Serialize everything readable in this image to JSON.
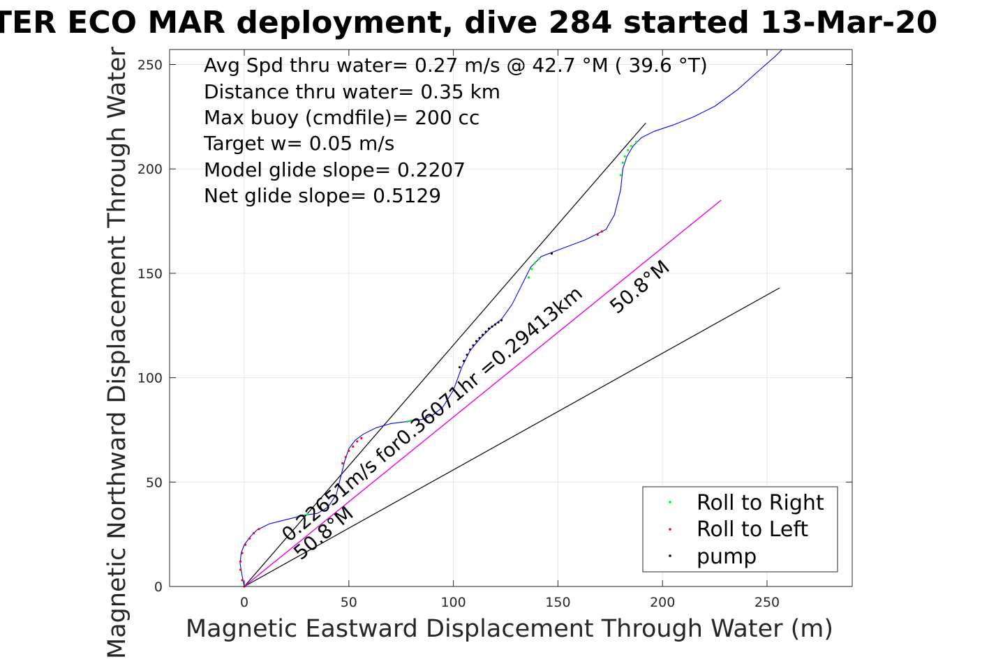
{
  "chart_data": {
    "type": "scatter",
    "title": "TER ECO MAR deployment, dive 284 started 13-Mar-20",
    "xlabel": "Magnetic Eastward Displacement Through Water (m)",
    "ylabel": "Magnetic Northward Displacement Through Water",
    "xlim": [
      -36,
      290
    ],
    "ylim": [
      0,
      258
    ],
    "xticks": [
      0,
      50,
      100,
      150,
      200,
      250
    ],
    "yticks": [
      0,
      50,
      100,
      150,
      200,
      250
    ],
    "grid": true,
    "legend_position": "bottom-right",
    "annotations": [
      "Avg Spd thru water=  0.27 m/s @  42.7 °M ( 39.6 °T)",
      "Distance thru water=  0.35 km",
      "Max buoy (cmdfile)= 200 cc",
      "Target w= 0.05 m/s",
      "Model glide slope= 0.2207",
      "Net glide slope= 0.5129"
    ],
    "rotated_labels": {
      "current": "0.22651m/s for0.36071hr =0.29413km",
      "heading_low": "50.8°M",
      "heading_high": "50.8°M"
    },
    "track": {
      "name": "track",
      "color": "#0000ff",
      "x": [
        0,
        -1,
        -2,
        -1.5,
        0,
        3,
        6,
        12,
        20,
        28,
        35,
        40,
        44,
        46,
        48,
        50,
        53,
        57,
        63,
        70,
        78,
        85,
        90,
        95,
        100,
        104,
        108,
        113,
        118,
        123,
        128,
        133,
        137,
        142,
        147,
        155,
        163,
        169,
        173,
        177,
        180,
        181,
        183,
        186,
        190,
        196,
        205,
        215,
        225,
        236,
        246,
        254,
        258
      ],
      "y": [
        0,
        5,
        11,
        16,
        20,
        24,
        27,
        30,
        32,
        34,
        35,
        38,
        44,
        52,
        60,
        66,
        70,
        73,
        76,
        78,
        79,
        80,
        82,
        86,
        94,
        105,
        113,
        119,
        124,
        128,
        135,
        145,
        153,
        158,
        160,
        163,
        166,
        169,
        171,
        178,
        190,
        200,
        206,
        211,
        215,
        218,
        221,
        225,
        230,
        238,
        247,
        254,
        258
      ]
    },
    "markers": [
      {
        "x": 0,
        "y": 0,
        "color": "#ff0000"
      },
      {
        "x": -1,
        "y": 3,
        "color": "#ff0000"
      },
      {
        "x": -1.8,
        "y": 8,
        "color": "#ff0000"
      },
      {
        "x": -1.8,
        "y": 12,
        "color": "#ff0000"
      },
      {
        "x": -1,
        "y": 16,
        "color": "#ff0000"
      },
      {
        "x": 0.5,
        "y": 20,
        "color": "#ff0000"
      },
      {
        "x": 2.5,
        "y": 23,
        "color": "#ff0000"
      },
      {
        "x": 4.5,
        "y": 25.5,
        "color": "#ff0000"
      },
      {
        "x": 7,
        "y": 27.5,
        "color": "#ff0000"
      },
      {
        "x": 26,
        "y": 33.5,
        "color": "#00ff00"
      },
      {
        "x": 28,
        "y": 34,
        "color": "#00ff00"
      },
      {
        "x": 30,
        "y": 34.5,
        "color": "#00ff00"
      },
      {
        "x": 47,
        "y": 59,
        "color": "#ff0000"
      },
      {
        "x": 48.5,
        "y": 62,
        "color": "#ff0000"
      },
      {
        "x": 50,
        "y": 65,
        "color": "#ff0000"
      },
      {
        "x": 52,
        "y": 67,
        "color": "#ff0000"
      },
      {
        "x": 54,
        "y": 69.5,
        "color": "#ff0000"
      },
      {
        "x": 56,
        "y": 71,
        "color": "#ff0000"
      },
      {
        "x": 78,
        "y": 79,
        "color": "#00ff00"
      },
      {
        "x": 80,
        "y": 79.5,
        "color": "#00ff00"
      },
      {
        "x": 103,
        "y": 105,
        "color": "#000000"
      },
      {
        "x": 105,
        "y": 108,
        "color": "#000000"
      },
      {
        "x": 106.5,
        "y": 111,
        "color": "#000000"
      },
      {
        "x": 108,
        "y": 113.5,
        "color": "#000000"
      },
      {
        "x": 109.5,
        "y": 115.5,
        "color": "#000000"
      },
      {
        "x": 111,
        "y": 117.5,
        "color": "#000000"
      },
      {
        "x": 112.5,
        "y": 119,
        "color": "#000000"
      },
      {
        "x": 114,
        "y": 120.5,
        "color": "#000000"
      },
      {
        "x": 115.5,
        "y": 122,
        "color": "#000000"
      },
      {
        "x": 117,
        "y": 123.5,
        "color": "#000000"
      },
      {
        "x": 118.5,
        "y": 124.5,
        "color": "#000000"
      },
      {
        "x": 120,
        "y": 125.5,
        "color": "#000000"
      },
      {
        "x": 121.5,
        "y": 126.5,
        "color": "#000000"
      },
      {
        "x": 123,
        "y": 127.5,
        "color": "#000000"
      },
      {
        "x": 136,
        "y": 148,
        "color": "#00ff00"
      },
      {
        "x": 137.5,
        "y": 152,
        "color": "#00ff00"
      },
      {
        "x": 139,
        "y": 155,
        "color": "#00ff00"
      },
      {
        "x": 141,
        "y": 157,
        "color": "#00ff00"
      },
      {
        "x": 147,
        "y": 159.5,
        "color": "#000000"
      },
      {
        "x": 169,
        "y": 168.5,
        "color": "#ff0000"
      },
      {
        "x": 171,
        "y": 170,
        "color": "#ff0000"
      },
      {
        "x": 180,
        "y": 197,
        "color": "#00ff00"
      },
      {
        "x": 181,
        "y": 203,
        "color": "#00ff00"
      },
      {
        "x": 182,
        "y": 206,
        "color": "#00ff00"
      },
      {
        "x": 183.5,
        "y": 209,
        "color": "#00ff00"
      },
      {
        "x": 185,
        "y": 211,
        "color": "#00ff00"
      },
      {
        "x": 187.5,
        "y": 213,
        "color": "#00ff00"
      }
    ],
    "lines": [
      {
        "name": "heading_upper",
        "color": "#000000",
        "x": [
          0,
          192
        ],
        "y": [
          0,
          222
        ]
      },
      {
        "name": "heading_lower",
        "color": "#000000",
        "x": [
          0,
          256
        ],
        "y": [
          0,
          143
        ]
      },
      {
        "name": "current",
        "color": "#000000",
        "x": [
          0,
          228
        ],
        "y": [
          0,
          185
        ]
      },
      {
        "name": "net",
        "color": "#ff00ff",
        "x": [
          0,
          228
        ],
        "y": [
          0,
          185
        ]
      }
    ],
    "legend": [
      {
        "label": "Roll to Right",
        "color": "#00ff00"
      },
      {
        "label": "Roll to Left",
        "color": "#ff0000"
      },
      {
        "label": "pump",
        "color": "#000000"
      }
    ]
  }
}
